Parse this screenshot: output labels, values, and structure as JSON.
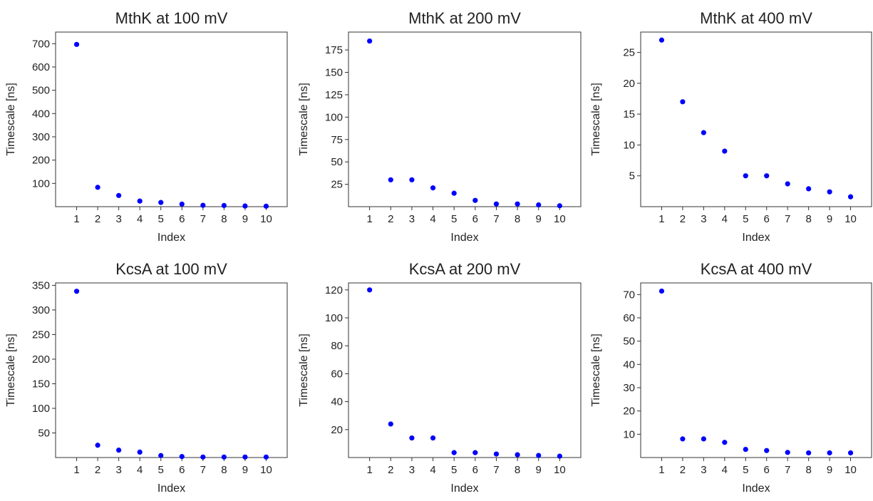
{
  "chart_data": [
    {
      "type": "scatter",
      "title": "MthK at 100 mV",
      "xlabel": "Index",
      "ylabel": "Timescale [ns]",
      "x": [
        1,
        2,
        3,
        4,
        5,
        6,
        7,
        8,
        9,
        10
      ],
      "y": [
        697,
        83,
        48,
        24,
        18,
        11,
        6,
        5,
        3,
        2
      ],
      "xticks": [
        1,
        2,
        3,
        4,
        5,
        6,
        7,
        8,
        9,
        10
      ],
      "yticks": [
        100,
        200,
        300,
        400,
        500,
        600,
        700
      ],
      "ylim": [
        0,
        750
      ],
      "xlim": [
        0,
        11
      ],
      "marker_color": "#0000ff"
    },
    {
      "type": "scatter",
      "title": "MthK at 200 mV",
      "xlabel": "Index",
      "ylabel": "Timescale [ns]",
      "x": [
        1,
        2,
        3,
        4,
        5,
        6,
        7,
        8,
        9,
        10
      ],
      "y": [
        185,
        30,
        30,
        21,
        15,
        7,
        3,
        3,
        2,
        1
      ],
      "xticks": [
        1,
        2,
        3,
        4,
        5,
        6,
        7,
        8,
        9,
        10
      ],
      "yticks": [
        25,
        50,
        75,
        100,
        125,
        150,
        175
      ],
      "ylim": [
        0,
        195
      ],
      "xlim": [
        0,
        11
      ],
      "marker_color": "#0000ff"
    },
    {
      "type": "scatter",
      "title": "MthK at 400 mV",
      "xlabel": "Index",
      "ylabel": "Timescale [ns]",
      "x": [
        1,
        2,
        3,
        4,
        5,
        6,
        7,
        8,
        9,
        10
      ],
      "y": [
        27,
        17,
        12,
        9,
        5,
        5,
        3.7,
        2.9,
        2.4,
        1.6
      ],
      "xticks": [
        1,
        2,
        3,
        4,
        5,
        6,
        7,
        8,
        9,
        10
      ],
      "yticks": [
        5,
        10,
        15,
        20,
        25
      ],
      "ylim": [
        0,
        28.3
      ],
      "xlim": [
        0,
        11
      ],
      "marker_color": "#0000ff"
    },
    {
      "type": "scatter",
      "title": "KcsA at 100 mV",
      "xlabel": "Index",
      "ylabel": "Timescale [ns]",
      "x": [
        1,
        2,
        3,
        4,
        5,
        6,
        7,
        8,
        9,
        10
      ],
      "y": [
        338,
        25,
        15,
        11,
        4,
        2,
        1,
        1,
        1,
        1
      ],
      "xticks": [
        1,
        2,
        3,
        4,
        5,
        6,
        7,
        8,
        9,
        10
      ],
      "yticks": [
        50,
        100,
        150,
        200,
        250,
        300,
        350
      ],
      "ylim": [
        0,
        355
      ],
      "xlim": [
        0,
        11
      ],
      "marker_color": "#0000ff"
    },
    {
      "type": "scatter",
      "title": "KcsA at 200 mV",
      "xlabel": "Index",
      "ylabel": "Timescale [ns]",
      "x": [
        1,
        2,
        3,
        4,
        5,
        6,
        7,
        8,
        9,
        10
      ],
      "y": [
        120,
        24,
        14,
        14,
        3.5,
        3.5,
        2.5,
        2,
        1.5,
        1
      ],
      "xticks": [
        1,
        2,
        3,
        4,
        5,
        6,
        7,
        8,
        9,
        10
      ],
      "yticks": [
        20,
        40,
        60,
        80,
        100,
        120
      ],
      "ylim": [
        0,
        125
      ],
      "xlim": [
        0,
        11
      ],
      "marker_color": "#0000ff"
    },
    {
      "type": "scatter",
      "title": "KcsA at 400 mV",
      "xlabel": "Index",
      "ylabel": "Timescale [ns]",
      "x": [
        1,
        2,
        3,
        4,
        5,
        6,
        7,
        8,
        9,
        10
      ],
      "y": [
        71.5,
        8,
        8,
        6.5,
        3.5,
        3,
        2.2,
        2,
        2,
        2
      ],
      "xticks": [
        1,
        2,
        3,
        4,
        5,
        6,
        7,
        8,
        9,
        10
      ],
      "yticks": [
        10,
        20,
        30,
        40,
        50,
        60,
        70
      ],
      "ylim": [
        0,
        75
      ],
      "xlim": [
        0,
        11
      ],
      "marker_color": "#0000ff"
    }
  ]
}
